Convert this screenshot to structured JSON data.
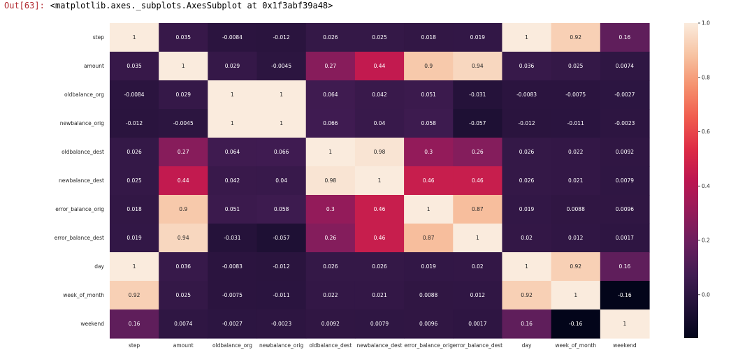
{
  "output": {
    "prompt": "Out[63]:",
    "text": "<matplotlib.axes._subplots.AxesSubplot at 0x1f3abf39a48>"
  },
  "chart_data": {
    "type": "heatmap",
    "title": "",
    "xlabel": "",
    "ylabel": "",
    "labels": [
      "step",
      "amount",
      "oldbalance_org",
      "newbalance_orig",
      "oldbalance_dest",
      "newbalance_dest",
      "error_balance_orig",
      "error_balance_dest",
      "day",
      "week_of_month",
      "weekend"
    ],
    "values": [
      [
        1,
        0.035,
        -0.0084,
        -0.012,
        0.026,
        0.025,
        0.018,
        0.019,
        1,
        0.92,
        0.16
      ],
      [
        0.035,
        1,
        0.029,
        -0.0045,
        0.27,
        0.44,
        0.9,
        0.94,
        0.036,
        0.025,
        0.0074
      ],
      [
        -0.0084,
        0.029,
        1,
        1,
        0.064,
        0.042,
        0.051,
        -0.031,
        -0.0083,
        -0.0075,
        -0.0027
      ],
      [
        -0.012,
        -0.0045,
        1,
        1,
        0.066,
        0.04,
        0.058,
        -0.057,
        -0.012,
        -0.011,
        -0.0023
      ],
      [
        0.026,
        0.27,
        0.064,
        0.066,
        1,
        0.98,
        0.3,
        0.26,
        0.026,
        0.022,
        0.0092
      ],
      [
        0.025,
        0.44,
        0.042,
        0.04,
        0.98,
        1,
        0.46,
        0.46,
        0.026,
        0.021,
        0.0079
      ],
      [
        0.018,
        0.9,
        0.051,
        0.058,
        0.3,
        0.46,
        1,
        0.87,
        0.019,
        0.0088,
        0.0096
      ],
      [
        0.019,
        0.94,
        -0.031,
        -0.057,
        0.26,
        0.46,
        0.87,
        1,
        0.02,
        0.012,
        0.0017
      ],
      [
        1,
        0.036,
        -0.0083,
        -0.012,
        0.026,
        0.026,
        0.019,
        0.02,
        1,
        0.92,
        0.16
      ],
      [
        0.92,
        0.025,
        -0.0075,
        -0.011,
        0.022,
        0.021,
        0.0088,
        0.012,
        0.92,
        1,
        -0.16
      ],
      [
        0.16,
        0.0074,
        -0.0027,
        -0.0023,
        0.0092,
        0.0079,
        0.0096,
        0.0017,
        0.16,
        -0.16,
        1
      ]
    ],
    "value_labels": [
      [
        "1",
        "0.035",
        "-0.0084",
        "-0.012",
        "0.026",
        "0.025",
        "0.018",
        "0.019",
        "1",
        "0.92",
        "0.16"
      ],
      [
        "0.035",
        "1",
        "0.029",
        "-0.0045",
        "0.27",
        "0.44",
        "0.9",
        "0.94",
        "0.036",
        "0.025",
        "0.0074"
      ],
      [
        "-0.0084",
        "0.029",
        "1",
        "1",
        "0.064",
        "0.042",
        "0.051",
        "-0.031",
        "-0.0083",
        "-0.0075",
        "-0.0027"
      ],
      [
        "-0.012",
        "-0.0045",
        "1",
        "1",
        "0.066",
        "0.04",
        "0.058",
        "-0.057",
        "-0.012",
        "-0.011",
        "-0.0023"
      ],
      [
        "0.026",
        "0.27",
        "0.064",
        "0.066",
        "1",
        "0.98",
        "0.3",
        "0.26",
        "0.026",
        "0.022",
        "0.0092"
      ],
      [
        "0.025",
        "0.44",
        "0.042",
        "0.04",
        "0.98",
        "1",
        "0.46",
        "0.46",
        "0.026",
        "0.021",
        "0.0079"
      ],
      [
        "0.018",
        "0.9",
        "0.051",
        "0.058",
        "0.3",
        "0.46",
        "1",
        "0.87",
        "0.019",
        "0.0088",
        "0.0096"
      ],
      [
        "0.019",
        "0.94",
        "-0.031",
        "-0.057",
        "0.26",
        "0.46",
        "0.87",
        "1",
        "0.02",
        "0.012",
        "0.0017"
      ],
      [
        "1",
        "0.036",
        "-0.0083",
        "-0.012",
        "0.026",
        "0.026",
        "0.019",
        "0.02",
        "1",
        "0.92",
        "0.16"
      ],
      [
        "0.92",
        "0.025",
        "-0.0075",
        "-0.011",
        "0.022",
        "0.021",
        "0.0088",
        "0.012",
        "0.92",
        "1",
        "-0.16"
      ],
      [
        "0.16",
        "0.0074",
        "-0.0027",
        "-0.0023",
        "0.0092",
        "0.0079",
        "0.0096",
        "0.0017",
        "0.16",
        "-0.16",
        "1"
      ]
    ],
    "vmin": -0.16,
    "vmax": 1.0,
    "colormap": "rocket",
    "colorbar": {
      "ticks": [
        0.0,
        0.2,
        0.4,
        0.6,
        0.8,
        1.0
      ],
      "tick_labels": [
        "0.0",
        "0.2",
        "0.4",
        "0.6",
        "0.8",
        "1.0"
      ]
    },
    "grid": false,
    "legend": "colorbar-right"
  }
}
